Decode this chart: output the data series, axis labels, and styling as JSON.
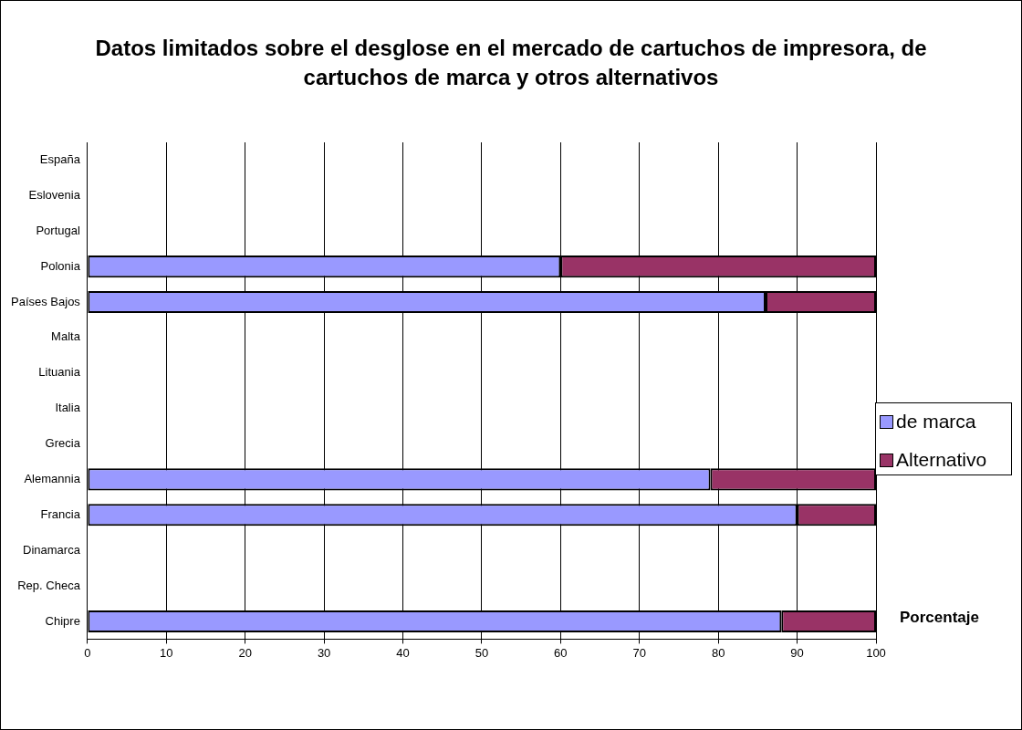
{
  "chart_data": {
    "type": "bar",
    "orientation": "horizontal",
    "stacked": true,
    "title": "Datos limitados sobre el desglose en el mercado de cartuchos de impresora, de cartuchos de marca y otros alternativos",
    "xlabel": "Porcentaje",
    "categories": [
      "España",
      "Eslovenia",
      "Portugal",
      "Polonia",
      "Países Bajos",
      "Malta",
      "Lituania",
      "Italia",
      "Grecia",
      "Alemannia",
      "Francia",
      "Dinamarca",
      "Rep. Checa",
      "Chipre"
    ],
    "series": [
      {
        "name": "de marca",
        "color": "#9999ff",
        "values": [
          null,
          null,
          null,
          60,
          86,
          null,
          null,
          null,
          null,
          79,
          90,
          null,
          null,
          88
        ]
      },
      {
        "name": "Alternativo",
        "color": "#993366",
        "values": [
          null,
          null,
          null,
          40,
          14,
          null,
          null,
          null,
          null,
          21,
          10,
          null,
          null,
          12
        ]
      }
    ],
    "xlim": [
      0,
      100
    ],
    "xticks": [
      0,
      10,
      20,
      30,
      40,
      50,
      60,
      70,
      80,
      90,
      100
    ],
    "grid": "x",
    "legend": "right"
  }
}
